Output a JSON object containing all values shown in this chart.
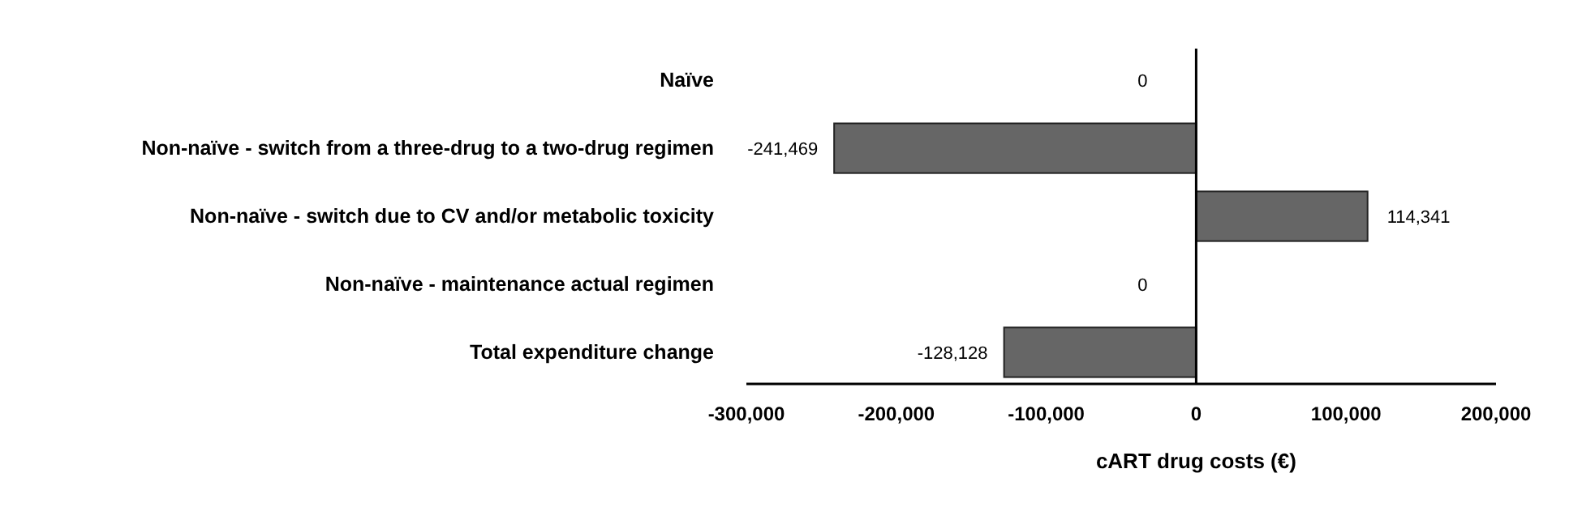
{
  "chart_data": {
    "type": "bar",
    "orientation": "horizontal",
    "xlabel": "cART drug costs (€)",
    "categories": [
      "Naïve",
      "Non-naïve - switch from a three-drug to a two-drug regimen",
      "Non-naïve - switch due to CV and/or metabolic toxicity",
      "Non-naïve - maintenance actual regimen",
      "Total expenditure change"
    ],
    "values": [
      0,
      -241469,
      114341,
      0,
      -128128
    ],
    "color": "#666666",
    "xlim": [
      -300000,
      200000
    ],
    "xticks": [
      {
        "value": -300000,
        "label": "-300,000"
      },
      {
        "value": -200000,
        "label": "-200,000"
      },
      {
        "value": -100000,
        "label": "-100,000"
      },
      0,
      {
        "value": 100000,
        "label": "100,000"
      },
      {
        "value": 200000,
        "label": "200,000"
      }
    ],
    "value_labels": [
      "0",
      "-241,469",
      "114,341",
      "0",
      "-128,128"
    ]
  }
}
